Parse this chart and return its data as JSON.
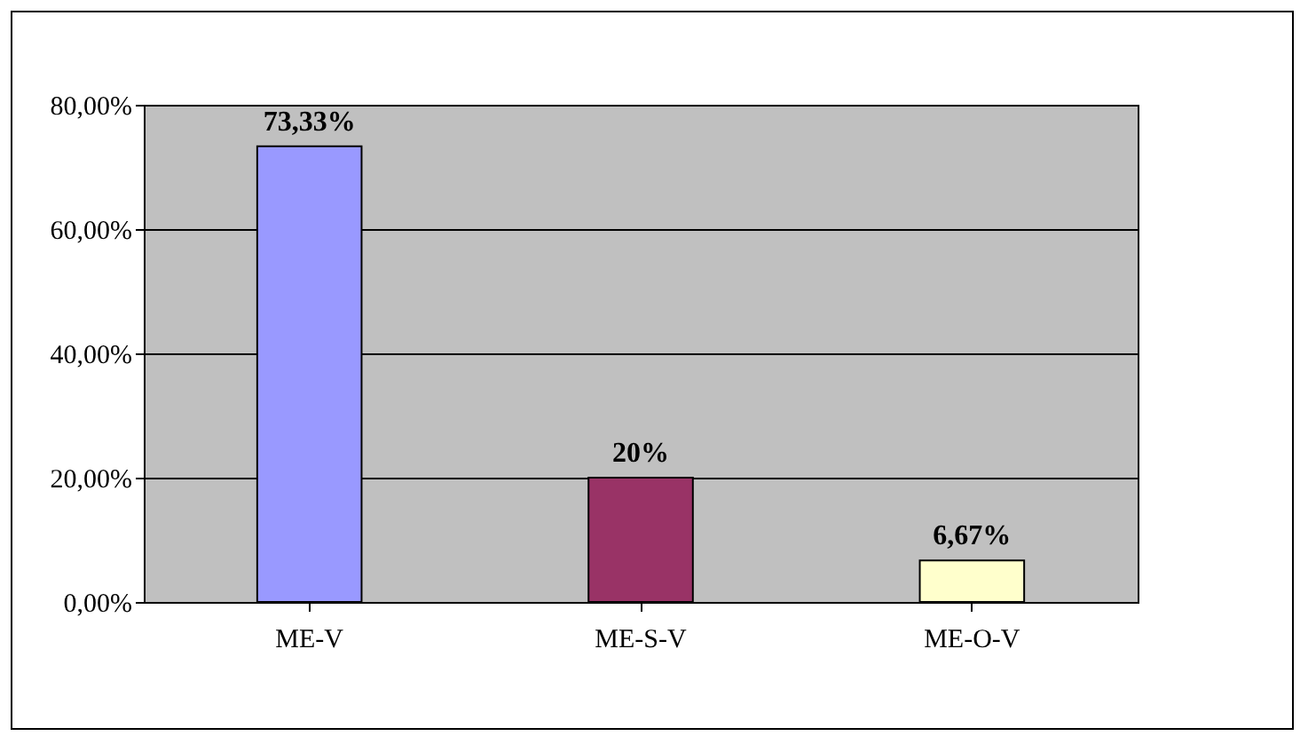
{
  "chart_data": {
    "type": "bar",
    "categories": [
      "ME-V",
      "ME-S-V",
      "ME-O-V"
    ],
    "values": [
      73.33,
      20,
      6.67
    ],
    "colors": [
      "#9999ff",
      "#993366",
      "#ffffcc"
    ],
    "value_labels": [
      "73,33%",
      "20%",
      "6,67%"
    ],
    "ylim": [
      0,
      80
    ],
    "yticks": [
      {
        "value": 0,
        "label": "0,00%"
      },
      {
        "value": 20,
        "label": "20,00%"
      },
      {
        "value": 40,
        "label": "40,00%"
      },
      {
        "value": 60,
        "label": "60,00%"
      },
      {
        "value": 80,
        "label": "80,00%"
      }
    ],
    "grid": "y"
  }
}
